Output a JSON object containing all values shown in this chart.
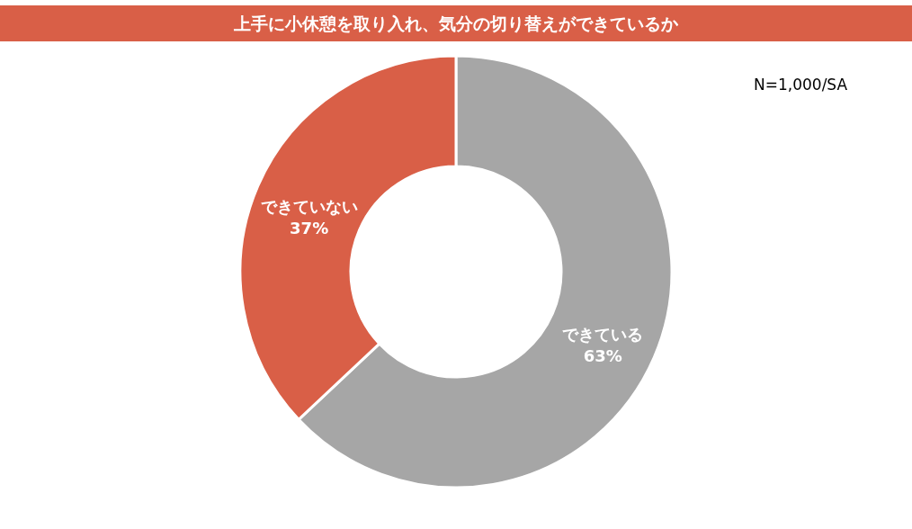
{
  "chart_data": {
    "type": "donut",
    "title": "上手に小休憩を取り入れ、気分の切り替えができているか",
    "categories": [
      "できている",
      "できていない"
    ],
    "values": [
      63,
      37
    ],
    "value_labels": [
      "63%",
      "37%"
    ],
    "colors": [
      "#a6a6a6",
      "#d95f47"
    ],
    "annotations": [
      "N=1,000/SA"
    ]
  }
}
